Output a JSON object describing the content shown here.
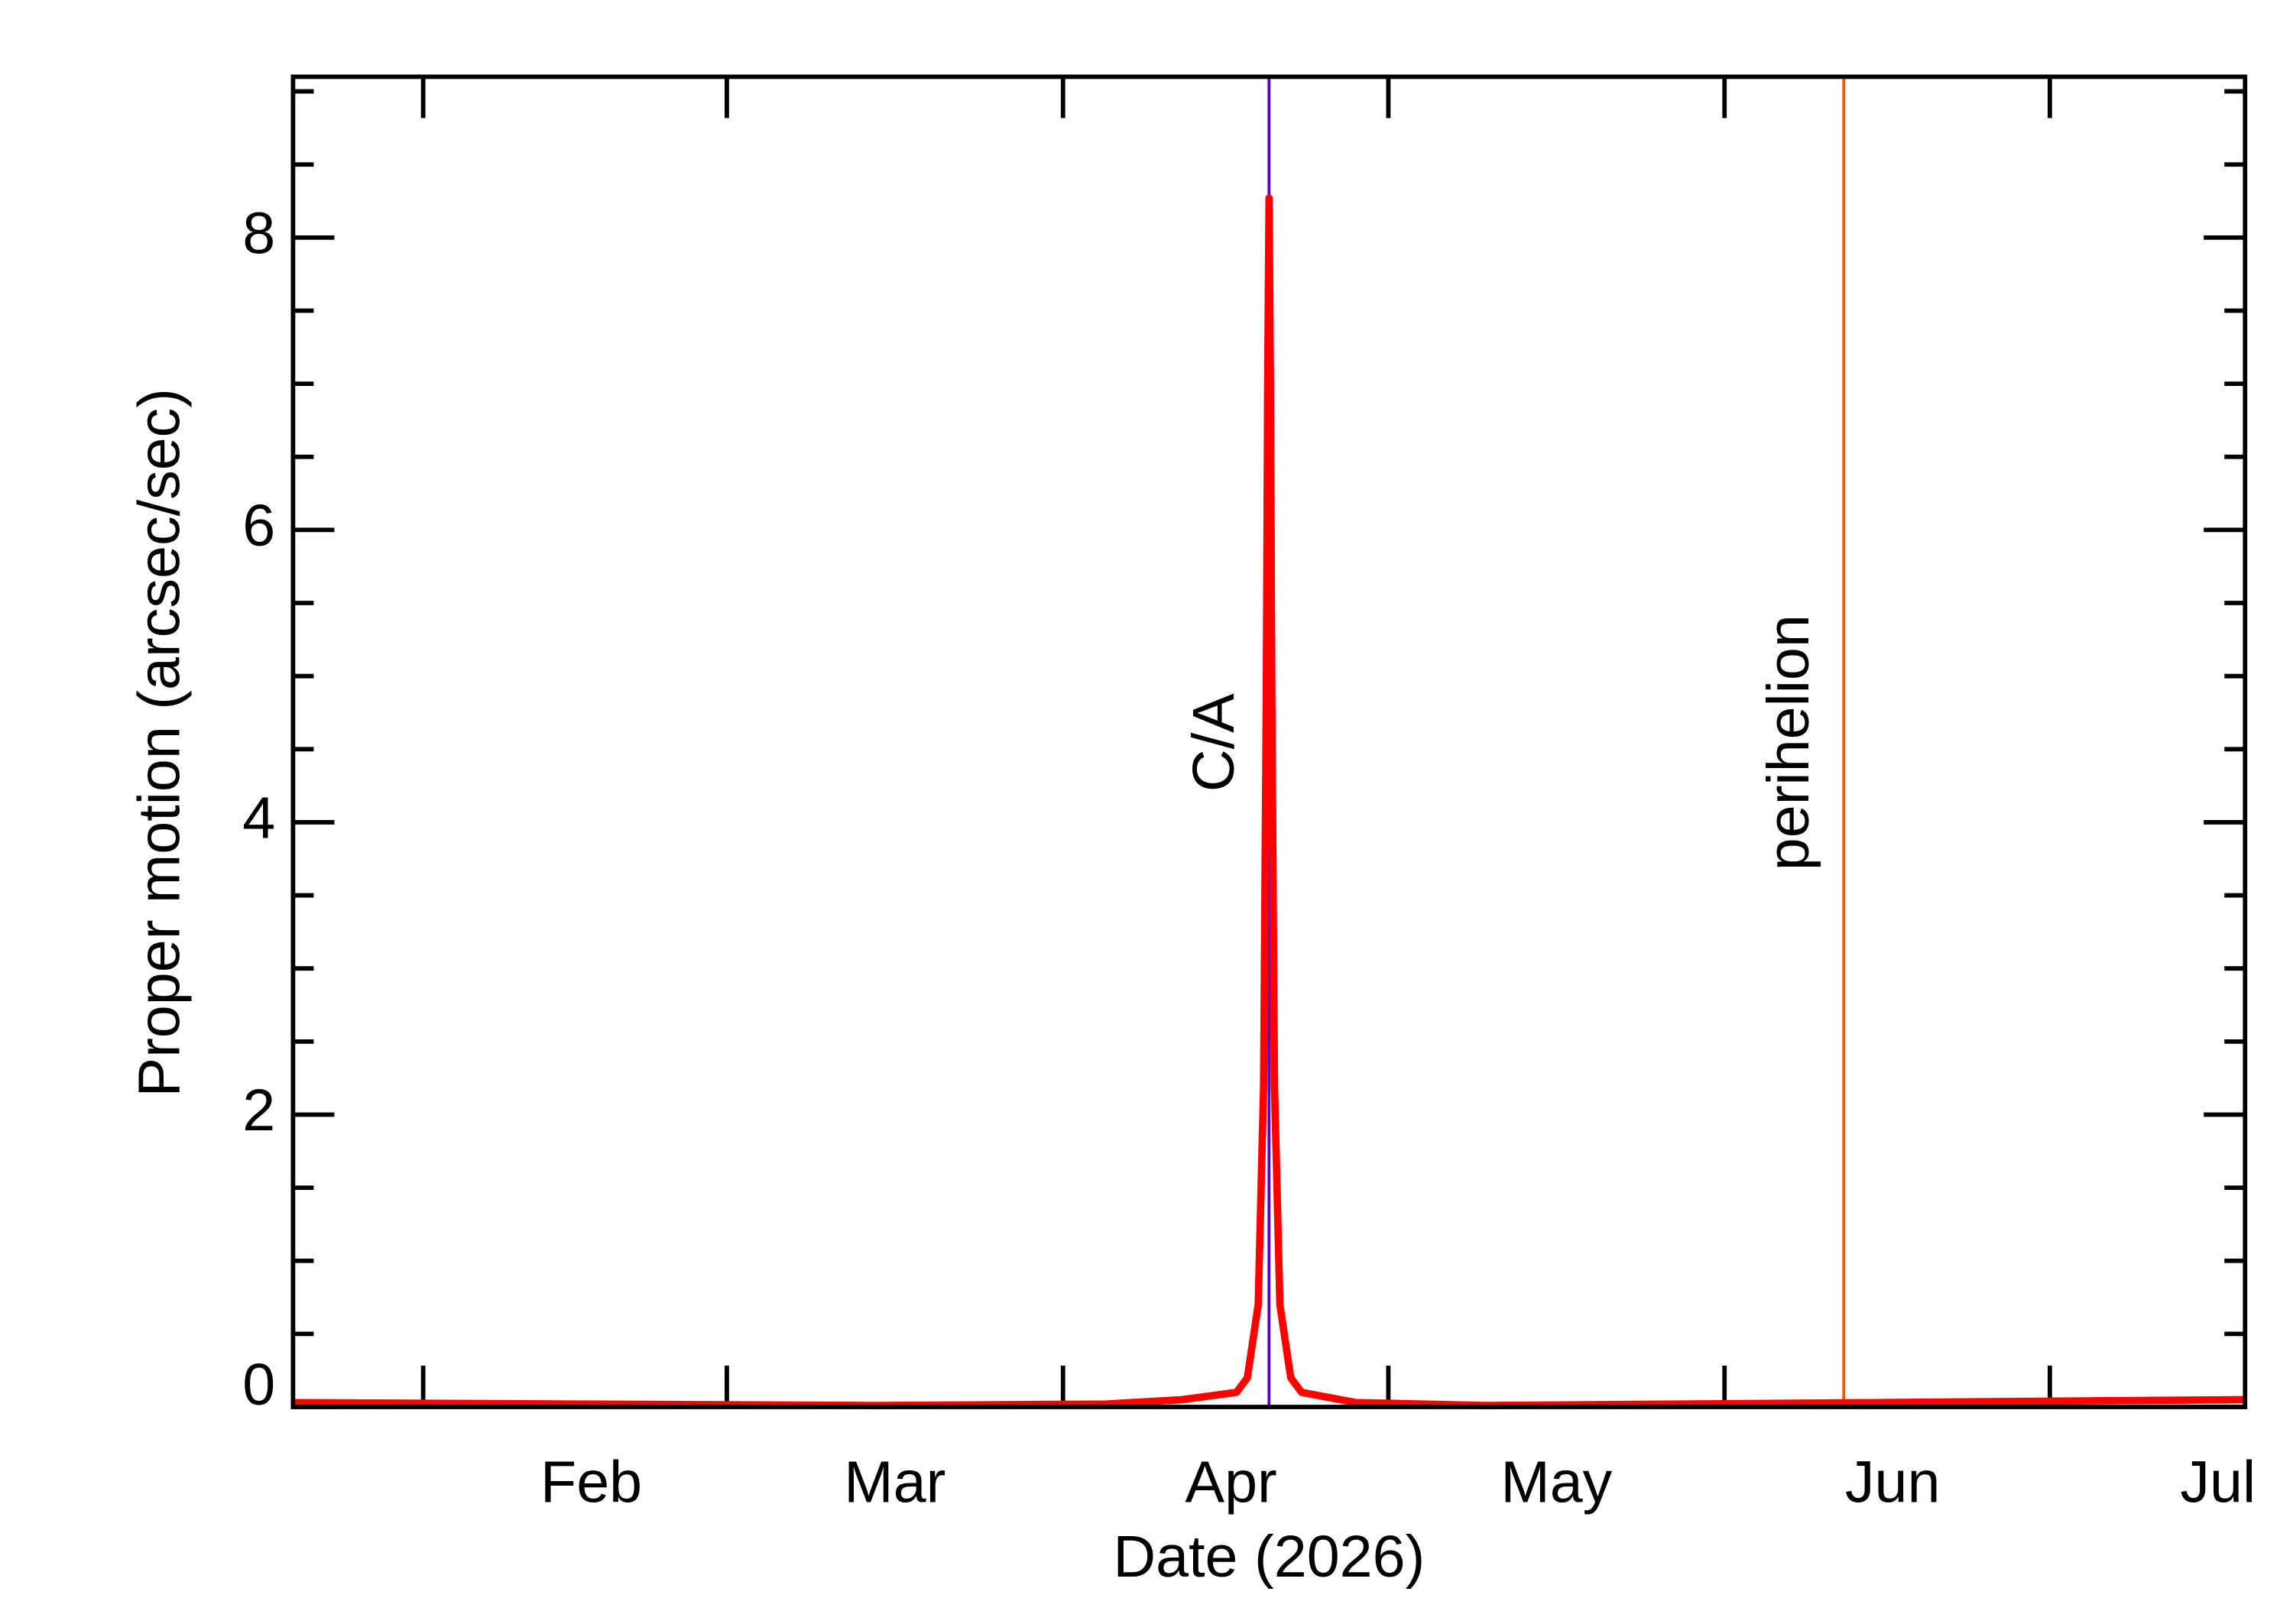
{
  "chart_data": {
    "type": "line",
    "xlabel": "Date (2026)",
    "ylabel": "Proper motion (arcsec/sec)",
    "xlim": [
      "2026-01-20",
      "2026-07-19"
    ],
    "xticks": [
      {
        "value": "2026-02-01",
        "label": "Feb"
      },
      {
        "value": "2026-03-01",
        "label": "Mar"
      },
      {
        "value": "2026-04-01",
        "label": "Apr"
      },
      {
        "value": "2026-05-01",
        "label": "May"
      },
      {
        "value": "2026-06-01",
        "label": "Jun"
      },
      {
        "value": "2026-07-01",
        "label": "Jul"
      }
    ],
    "ylim": [
      0,
      9.1
    ],
    "yticks": [
      0,
      2,
      4,
      6,
      8
    ],
    "yminorticks": [
      0.5,
      1,
      1.5,
      2.5,
      3,
      3.5,
      4.5,
      5,
      5.5,
      6.5,
      7,
      7.5,
      8.5,
      9
    ],
    "series": [
      {
        "color": "#ff0000",
        "x": [
          "2026-01-20",
          "2026-02-15",
          "2026-03-15",
          "2026-04-05",
          "2026-04-12",
          "2026-04-17",
          "2026-04-18",
          "2026-04-19",
          "2026-04-19T12:00",
          "2026-04-19T18:00",
          "2026-04-19T21:00",
          "2026-04-20",
          "2026-04-20T03:00",
          "2026-04-20T06:00",
          "2026-04-20T12:00",
          "2026-04-21",
          "2026-04-22",
          "2026-04-23",
          "2026-04-28",
          "2026-05-10",
          "2026-06-15",
          "2026-07-19"
        ],
        "values": [
          0.03,
          0.02,
          0.01,
          0.02,
          0.05,
          0.1,
          0.2,
          0.7,
          2.2,
          4.9,
          7.0,
          8.27,
          7.0,
          4.9,
          2.2,
          0.7,
          0.2,
          0.1,
          0.03,
          0.01,
          0.03,
          0.05
        ]
      }
    ],
    "annotations": [
      {
        "label": "C/A",
        "x": "2026-04-20",
        "color": "#5500cc"
      },
      {
        "label": "perihelion",
        "x": "2026-06-12",
        "color": "#ff5500"
      }
    ]
  }
}
